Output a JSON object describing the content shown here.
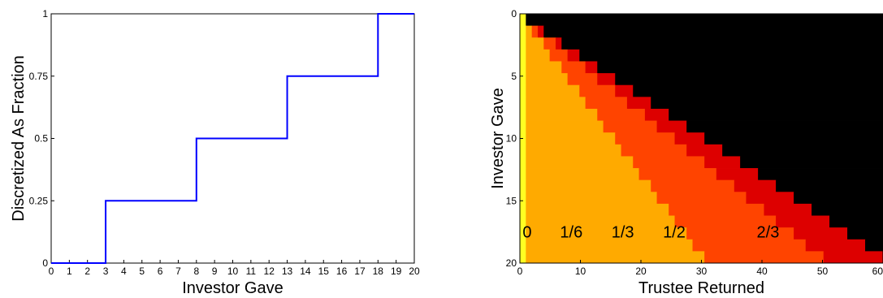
{
  "chart_data": [
    {
      "type": "line",
      "title": "",
      "xlabel": "Investor Gave",
      "ylabel": "Discretized As Fraction",
      "xlim": [
        0,
        20
      ],
      "ylim": [
        0,
        1
      ],
      "xticks": [
        0,
        1,
        2,
        3,
        4,
        5,
        6,
        7,
        8,
        9,
        10,
        11,
        12,
        13,
        14,
        15,
        16,
        17,
        18,
        19,
        20
      ],
      "yticks": [
        "0",
        "0.25",
        "0.5",
        "0.75",
        "1"
      ],
      "ytick_values": [
        0,
        0.25,
        0.5,
        0.75,
        1
      ],
      "grid": false,
      "series": [
        {
          "color": "#0000ff",
          "step": "post",
          "x": [
            0,
            3,
            8,
            13,
            18,
            20
          ],
          "y": [
            0,
            0.25,
            0.5,
            0.75,
            1,
            1
          ]
        }
      ]
    },
    {
      "type": "heatmap",
      "title": "",
      "xlabel": "Trustee Returned",
      "ylabel": "Investor Gave",
      "xlim": [
        0,
        60
      ],
      "ylim": [
        20,
        0
      ],
      "xticks": [
        0,
        10,
        20,
        30,
        40,
        50,
        60
      ],
      "yticks": [
        0,
        5,
        10,
        15,
        20
      ],
      "grid": false,
      "region_labels": [
        {
          "text": "0",
          "x": 1.2,
          "y": 17.5
        },
        {
          "text": "1/6",
          "x": 8.5,
          "y": 17.5
        },
        {
          "text": "1/3",
          "x": 17,
          "y": 17.5
        },
        {
          "text": "1/2",
          "x": 25.5,
          "y": 17.5
        },
        {
          "text": "2/3",
          "x": 41,
          "y": 17.5
        }
      ],
      "regions": [
        {
          "label": "0",
          "fraction": 0,
          "color": "#ffff22"
        },
        {
          "label": "1/6",
          "fraction": 0.1667,
          "color": "#ffaa00"
        },
        {
          "label": "1/3",
          "fraction": 0.3333,
          "color": "#ff4400"
        },
        {
          "label": "1/2",
          "fraction": 0.5,
          "color": "#dd0000"
        },
        {
          "label": "2/3",
          "fraction": 0.6667,
          "color": "#770000"
        },
        {
          "label": "",
          "fraction": null,
          "color": "#000000"
        }
      ]
    }
  ]
}
